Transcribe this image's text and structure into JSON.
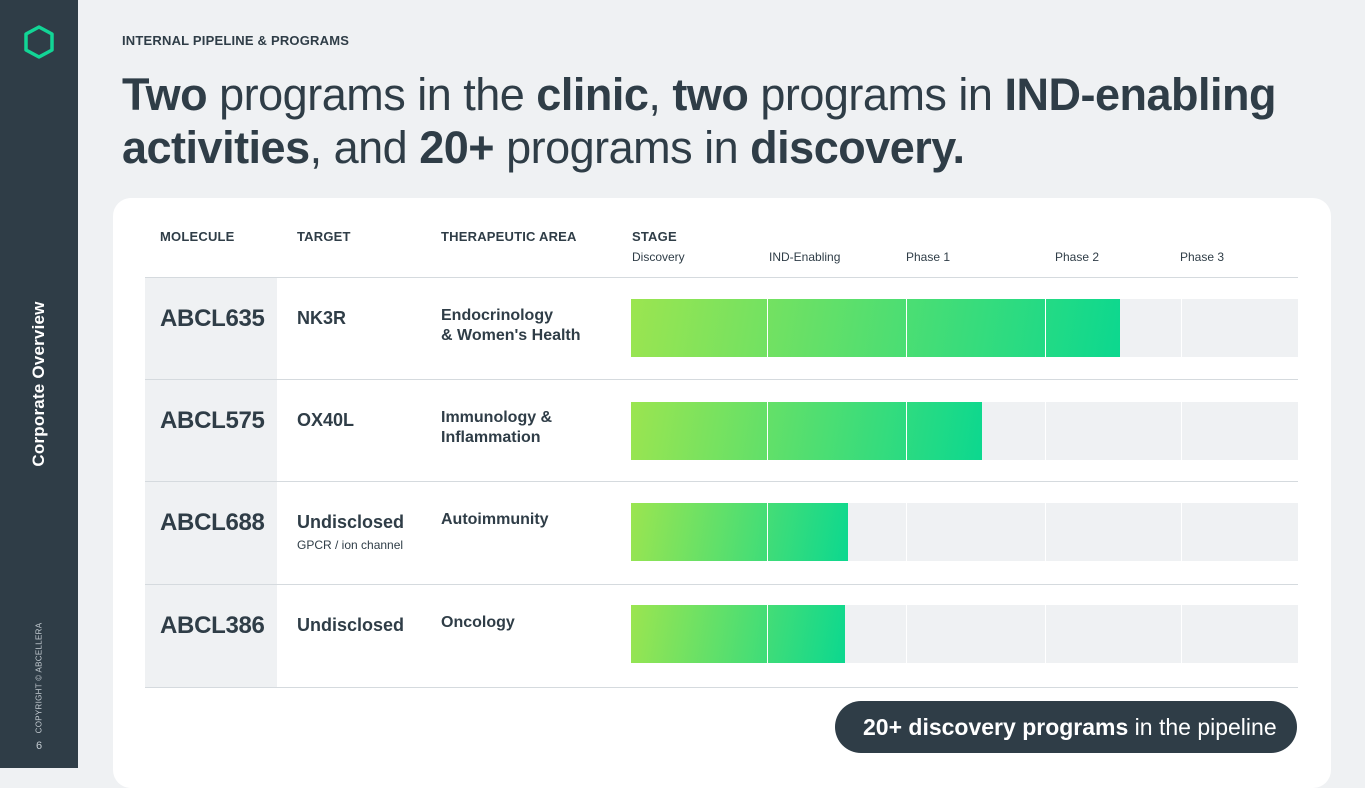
{
  "sidebar": {
    "title": "Corporate Overview",
    "copyright": "COPYRIGHT © ABCELLERA",
    "page_number": "6",
    "logo_icon": "hexagon-logo-icon",
    "logo_color": "#12d596"
  },
  "header": {
    "eyebrow": "INTERNAL PIPELINE & PROGRAMS",
    "headline_parts": [
      {
        "text": "Two",
        "bold": true
      },
      {
        "text": " programs in the ",
        "bold": false
      },
      {
        "text": "clinic",
        "bold": true
      },
      {
        "text": ", ",
        "bold": false
      },
      {
        "text": "two",
        "bold": true
      },
      {
        "text": " programs in ",
        "bold": false
      },
      {
        "text": "IND-enabling activities",
        "bold": true
      },
      {
        "text": ", and ",
        "bold": false
      },
      {
        "text": "20+",
        "bold": true
      },
      {
        "text": " programs in ",
        "bold": false
      },
      {
        "text": "discovery.",
        "bold": true
      }
    ]
  },
  "table": {
    "columns": {
      "molecule": "MOLECULE",
      "target": "TARGET",
      "area": "THERAPEUTIC AREA",
      "stage": "STAGE"
    },
    "stages": [
      "Discovery",
      "IND-Enabling",
      "Phase 1",
      "Phase 2",
      "Phase 3"
    ],
    "rows": [
      {
        "molecule": "ABCL635",
        "target": "NK3R",
        "target_sub": "",
        "area_line1": "Endocrinology",
        "area_line2": "& Women's Health",
        "progress_stages": 3.55
      },
      {
        "molecule": "ABCL575",
        "target": "OX40L",
        "target_sub": "",
        "area_line1": "Immunology &",
        "area_line2": "Inflammation",
        "progress_stages": 2.55
      },
      {
        "molecule": "ABCL688",
        "target": "Undisclosed",
        "target_sub": "GPCR / ion channel",
        "area_line1": "Autoimmunity",
        "area_line2": "",
        "progress_stages": 1.58
      },
      {
        "molecule": "ABCL386",
        "target": "Undisclosed",
        "target_sub": "",
        "area_line1": "Oncology",
        "area_line2": "",
        "progress_stages": 1.56
      }
    ]
  },
  "footer_pill": {
    "bold_text": "20+ discovery programs",
    "normal_text": " in the pipeline"
  },
  "colors": {
    "sidebar_bg": "#2f3d47",
    "bar_start": "#9be550",
    "bar_end": "#0cd88f",
    "track": "#eff1f3"
  }
}
